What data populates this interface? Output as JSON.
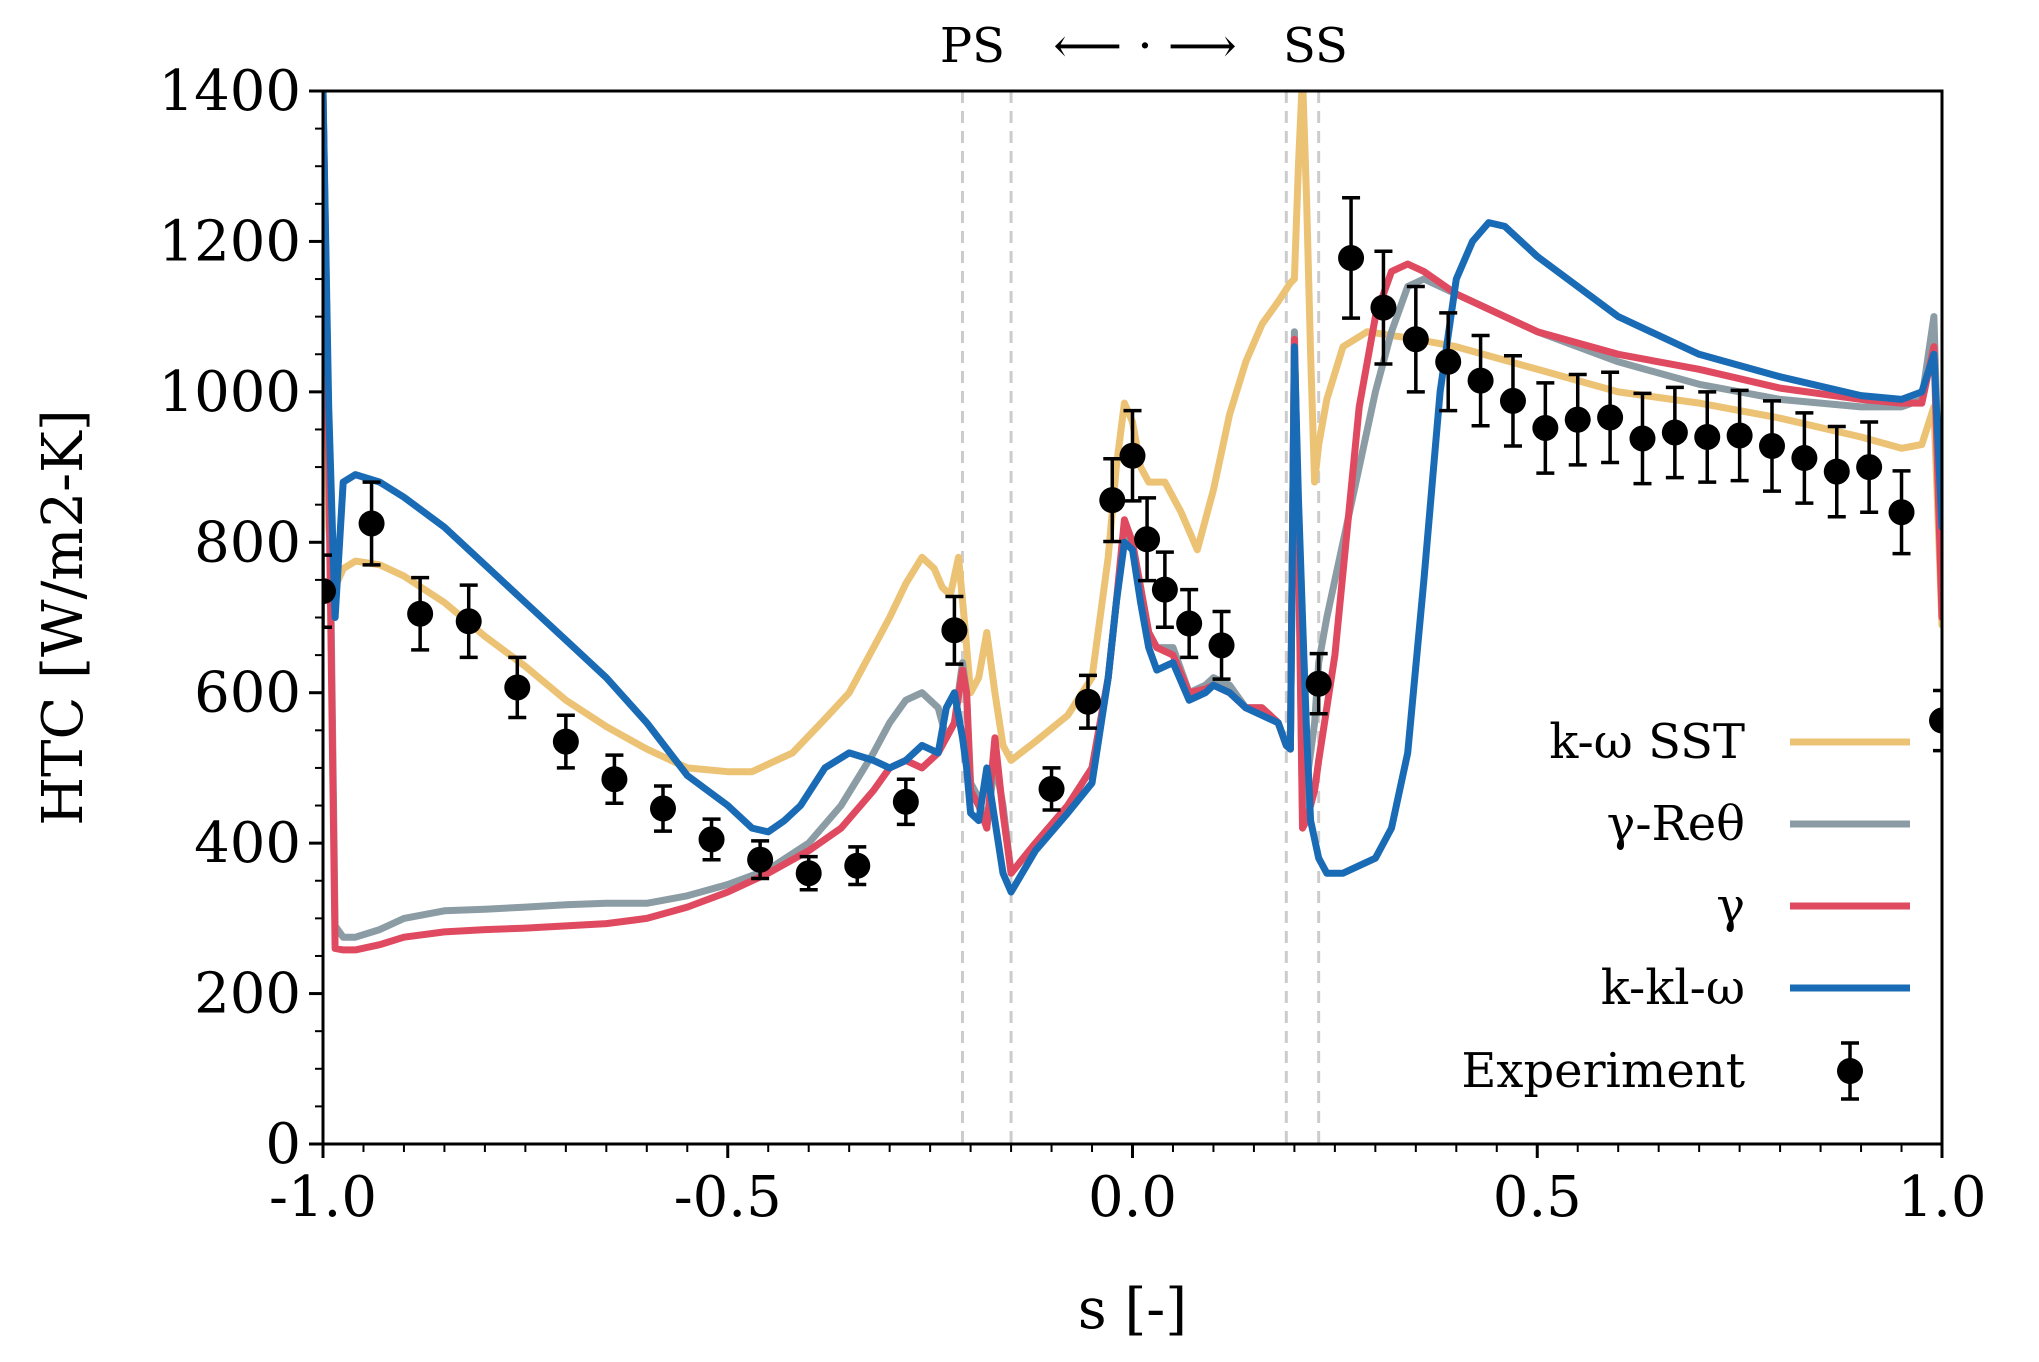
{
  "chart_data": {
    "type": "line",
    "title": "",
    "xlabel": "s [-]",
    "ylabel": "HTC [W/m2-K]",
    "xlim": [
      -1.0,
      1.0
    ],
    "ylim": [
      0,
      1400
    ],
    "xticks": [
      -1.0,
      -0.5,
      0.0,
      0.5,
      1.0
    ],
    "xtick_labels": [
      "-1.0",
      "-0.5",
      "0.0",
      "0.5",
      "1.0"
    ],
    "yticks": [
      0,
      200,
      400,
      600,
      800,
      1000,
      1200,
      1400
    ],
    "ytick_labels": [
      "0",
      "200",
      "400",
      "600",
      "800",
      "1000",
      "1200",
      "1400"
    ],
    "grid": false,
    "legend_position": "lower-right",
    "annotation": {
      "ps": "PS",
      "arrow": "⟵ · ⟶",
      "ss": "SS"
    },
    "vlines": [
      -0.21,
      -0.15,
      0.19,
      0.23
    ],
    "series": [
      {
        "name": "k-ω SST",
        "color": "#ECC274",
        "x": [
          -1.0,
          -0.993,
          -0.985,
          -0.975,
          -0.96,
          -0.93,
          -0.9,
          -0.85,
          -0.8,
          -0.75,
          -0.7,
          -0.65,
          -0.6,
          -0.55,
          -0.5,
          -0.47,
          -0.45,
          -0.42,
          -0.38,
          -0.35,
          -0.32,
          -0.3,
          -0.28,
          -0.26,
          -0.245,
          -0.235,
          -0.225,
          -0.215,
          -0.208,
          -0.2,
          -0.19,
          -0.18,
          -0.17,
          -0.16,
          -0.15,
          -0.12,
          -0.08,
          -0.05,
          -0.03,
          -0.02,
          -0.01,
          0.0,
          0.01,
          0.02,
          0.04,
          0.06,
          0.08,
          0.1,
          0.12,
          0.14,
          0.16,
          0.18,
          0.195,
          0.2,
          0.205,
          0.21,
          0.215,
          0.22,
          0.225,
          0.23,
          0.24,
          0.26,
          0.29,
          0.32,
          0.35,
          0.4,
          0.5,
          0.6,
          0.7,
          0.8,
          0.9,
          0.95,
          0.975,
          0.99,
          1.0
        ],
        "values": [
          1400,
          820,
          740,
          765,
          775,
          770,
          755,
          720,
          675,
          635,
          590,
          555,
          525,
          500,
          495,
          495,
          505,
          520,
          565,
          600,
          660,
          700,
          745,
          780,
          765,
          740,
          730,
          780,
          700,
          600,
          620,
          680,
          600,
          530,
          510,
          535,
          570,
          620,
          780,
          900,
          985,
          960,
          900,
          880,
          880,
          840,
          790,
          870,
          970,
          1040,
          1090,
          1120,
          1145,
          1150,
          1300,
          1420,
          1260,
          1050,
          880,
          930,
          990,
          1060,
          1080,
          1075,
          1070,
          1060,
          1030,
          1000,
          985,
          965,
          940,
          925,
          930,
          980,
          690
        ]
      },
      {
        "name": "γ-Reθ",
        "color": "#8C9CA5",
        "x": [
          -1.0,
          -0.993,
          -0.985,
          -0.975,
          -0.96,
          -0.93,
          -0.9,
          -0.85,
          -0.8,
          -0.75,
          -0.7,
          -0.65,
          -0.6,
          -0.55,
          -0.5,
          -0.45,
          -0.4,
          -0.36,
          -0.32,
          -0.3,
          -0.28,
          -0.26,
          -0.24,
          -0.23,
          -0.22,
          -0.21,
          -0.205,
          -0.2,
          -0.19,
          -0.18,
          -0.17,
          -0.16,
          -0.15,
          -0.12,
          -0.08,
          -0.05,
          -0.03,
          -0.02,
          -0.01,
          0.0,
          0.01,
          0.02,
          0.03,
          0.05,
          0.07,
          0.09,
          0.1,
          0.12,
          0.14,
          0.16,
          0.18,
          0.19,
          0.195,
          0.2,
          0.205,
          0.21,
          0.215,
          0.22,
          0.225,
          0.23,
          0.24,
          0.26,
          0.28,
          0.3,
          0.32,
          0.34,
          0.36,
          0.4,
          0.5,
          0.6,
          0.7,
          0.8,
          0.9,
          0.95,
          0.975,
          0.99,
          1.0
        ],
        "values": [
          1400,
          950,
          290,
          275,
          275,
          285,
          300,
          310,
          312,
          315,
          318,
          320,
          320,
          330,
          345,
          365,
          400,
          450,
          520,
          560,
          590,
          600,
          580,
          540,
          560,
          640,
          600,
          480,
          460,
          420,
          510,
          450,
          360,
          400,
          450,
          500,
          620,
          720,
          820,
          790,
          740,
          680,
          660,
          660,
          600,
          610,
          620,
          610,
          580,
          580,
          560,
          530,
          525,
          1080,
          820,
          440,
          480,
          520,
          560,
          640,
          700,
          800,
          900,
          1000,
          1080,
          1140,
          1150,
          1130,
          1080,
          1040,
          1010,
          990,
          980,
          980,
          990,
          1100,
          740
        ]
      },
      {
        "name": "γ",
        "color": "#E04A60",
        "x": [
          -1.0,
          -0.993,
          -0.985,
          -0.975,
          -0.96,
          -0.93,
          -0.9,
          -0.85,
          -0.8,
          -0.75,
          -0.7,
          -0.65,
          -0.6,
          -0.55,
          -0.5,
          -0.45,
          -0.4,
          -0.36,
          -0.32,
          -0.3,
          -0.28,
          -0.26,
          -0.24,
          -0.23,
          -0.22,
          -0.21,
          -0.205,
          -0.2,
          -0.19,
          -0.18,
          -0.17,
          -0.16,
          -0.15,
          -0.12,
          -0.08,
          -0.05,
          -0.03,
          -0.02,
          -0.01,
          0.0,
          0.01,
          0.02,
          0.03,
          0.05,
          0.07,
          0.09,
          0.1,
          0.12,
          0.14,
          0.16,
          0.18,
          0.19,
          0.195,
          0.2,
          0.205,
          0.21,
          0.215,
          0.22,
          0.225,
          0.23,
          0.24,
          0.25,
          0.26,
          0.27,
          0.28,
          0.3,
          0.32,
          0.34,
          0.36,
          0.4,
          0.5,
          0.6,
          0.7,
          0.8,
          0.9,
          0.95,
          0.975,
          0.99,
          1.0
        ],
        "values": [
          1400,
          900,
          260,
          258,
          258,
          265,
          275,
          282,
          285,
          287,
          290,
          293,
          300,
          315,
          335,
          360,
          390,
          420,
          470,
          500,
          510,
          500,
          520,
          540,
          560,
          630,
          600,
          470,
          450,
          420,
          540,
          440,
          360,
          400,
          450,
          500,
          620,
          720,
          830,
          800,
          740,
          680,
          660,
          650,
          600,
          605,
          610,
          600,
          580,
          580,
          560,
          530,
          525,
          1070,
          800,
          420,
          430,
          450,
          470,
          510,
          580,
          650,
          760,
          870,
          980,
          1100,
          1160,
          1170,
          1160,
          1130,
          1080,
          1050,
          1030,
          1005,
          990,
          985,
          985,
          1060,
          700
        ]
      },
      {
        "name": "k-kl-ω",
        "color": "#1A6BB5",
        "x": [
          -1.0,
          -0.993,
          -0.985,
          -0.975,
          -0.96,
          -0.93,
          -0.9,
          -0.85,
          -0.8,
          -0.75,
          -0.7,
          -0.65,
          -0.6,
          -0.55,
          -0.5,
          -0.47,
          -0.45,
          -0.43,
          -0.41,
          -0.38,
          -0.35,
          -0.32,
          -0.3,
          -0.28,
          -0.26,
          -0.24,
          -0.23,
          -0.22,
          -0.21,
          -0.205,
          -0.2,
          -0.19,
          -0.18,
          -0.17,
          -0.16,
          -0.15,
          -0.12,
          -0.08,
          -0.05,
          -0.03,
          -0.02,
          -0.01,
          0.0,
          0.01,
          0.02,
          0.03,
          0.05,
          0.07,
          0.09,
          0.1,
          0.12,
          0.14,
          0.16,
          0.18,
          0.19,
          0.195,
          0.2,
          0.205,
          0.21,
          0.215,
          0.22,
          0.23,
          0.24,
          0.26,
          0.28,
          0.3,
          0.32,
          0.34,
          0.36,
          0.38,
          0.4,
          0.42,
          0.44,
          0.46,
          0.5,
          0.6,
          0.7,
          0.8,
          0.9,
          0.95,
          0.975,
          0.99,
          1.0
        ],
        "values": [
          1400,
          980,
          700,
          880,
          890,
          880,
          860,
          820,
          770,
          720,
          670,
          620,
          560,
          490,
          450,
          420,
          415,
          430,
          450,
          500,
          520,
          510,
          500,
          510,
          530,
          520,
          580,
          600,
          540,
          500,
          440,
          430,
          500,
          430,
          360,
          335,
          390,
          440,
          480,
          620,
          720,
          800,
          790,
          720,
          660,
          630,
          640,
          590,
          600,
          610,
          600,
          580,
          570,
          560,
          530,
          525,
          1060,
          860,
          700,
          550,
          430,
          380,
          360,
          360,
          370,
          380,
          420,
          520,
          750,
          1000,
          1150,
          1200,
          1225,
          1220,
          1180,
          1100,
          1050,
          1020,
          995,
          990,
          1000,
          1050,
          820
        ]
      }
    ],
    "experiment": {
      "name": "Experiment",
      "color": "#000000",
      "x": [
        -1.0,
        -0.94,
        -0.88,
        -0.82,
        -0.76,
        -0.7,
        -0.64,
        -0.58,
        -0.52,
        -0.46,
        -0.4,
        -0.34,
        -0.28,
        -0.22,
        -0.1,
        -0.055,
        -0.025,
        0.0,
        0.018,
        0.04,
        0.07,
        0.11,
        0.23,
        0.27,
        0.31,
        0.35,
        0.39,
        0.43,
        0.47,
        0.51,
        0.55,
        0.59,
        0.63,
        0.67,
        0.71,
        0.75,
        0.79,
        0.83,
        0.87,
        0.91,
        0.95,
        1.0
      ],
      "values": [
        735,
        825,
        705,
        695,
        607,
        535,
        485,
        446,
        405,
        378,
        360,
        370,
        455,
        683,
        472,
        588,
        856,
        915,
        804,
        737,
        692,
        663,
        612,
        1178,
        1112,
        1070,
        1040,
        1015,
        988,
        952,
        963,
        966,
        938,
        946,
        940,
        942,
        928,
        912,
        894,
        900,
        840,
        563
      ],
      "errors": [
        48,
        55,
        48,
        48,
        40,
        35,
        32,
        30,
        27,
        25,
        22,
        25,
        30,
        45,
        28,
        35,
        55,
        60,
        55,
        50,
        45,
        45,
        40,
        80,
        75,
        70,
        65,
        60,
        60,
        60,
        60,
        60,
        60,
        60,
        60,
        60,
        60,
        60,
        60,
        60,
        55,
        40
      ]
    }
  }
}
